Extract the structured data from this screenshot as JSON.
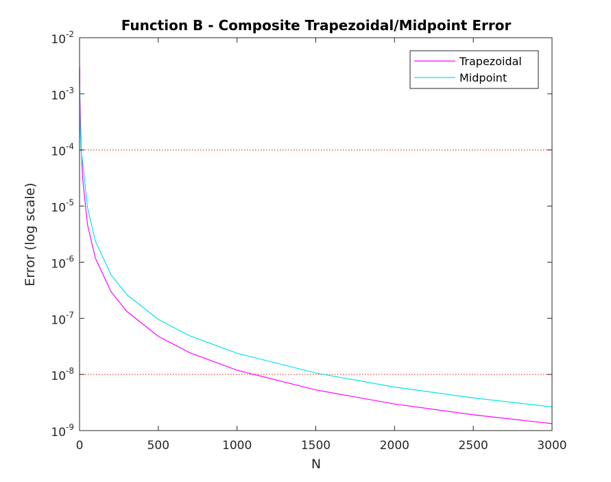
{
  "chart_data": {
    "type": "line",
    "title": "Function B - Composite Trapezoidal/Midpoint Error",
    "xlabel": "N",
    "ylabel": "Error (log scale)",
    "xlim": [
      0,
      3000
    ],
    "ylim": [
      1e-09,
      0.01
    ],
    "yscale": "log",
    "xticks": [
      0,
      500,
      1000,
      1500,
      2000,
      2500,
      3000
    ],
    "xtick_labels": [
      "0",
      "500",
      "1000",
      "1500",
      "2000",
      "2500",
      "3000"
    ],
    "yticks": [
      {
        "value": 1e-09,
        "base": "10",
        "exp": "-9"
      },
      {
        "value": 1e-08,
        "base": "10",
        "exp": "-8"
      },
      {
        "value": 1e-07,
        "base": "10",
        "exp": "-7"
      },
      {
        "value": 1e-06,
        "base": "10",
        "exp": "-6"
      },
      {
        "value": 1e-05,
        "base": "10",
        "exp": "-5"
      },
      {
        "value": 0.0001,
        "base": "10",
        "exp": "-4"
      },
      {
        "value": 0.001,
        "base": "10",
        "exp": "-3"
      },
      {
        "value": 0.01,
        "base": "10",
        "exp": "-2"
      }
    ],
    "grid": false,
    "legend_position": "top-right",
    "reference_lines": [
      {
        "y": 0.0001,
        "color": "#e8402f",
        "style": "dotted"
      },
      {
        "y": 1e-08,
        "color": "#e8402f",
        "style": "dotted"
      }
    ],
    "series": [
      {
        "name": "Trapezoidal",
        "color": "#ff00ff",
        "x": [
          1,
          2,
          5,
          10,
          20,
          50,
          100,
          200,
          300,
          500,
          700,
          1000,
          1500,
          2000,
          2500,
          3000
        ],
        "y": [
          0.003,
          0.00098,
          0.000412,
          0.000118,
          3.02e-05,
          4.78e-06,
          1.19e-06,
          2.98e-07,
          1.33e-07,
          4.78e-08,
          2.44e-08,
          1.19e-08,
          5.3e-09,
          2.98e-09,
          1.91e-09,
          1.33e-09
        ]
      },
      {
        "name": "Midpoint",
        "color": "#00e5ee",
        "x": [
          1,
          2,
          5,
          10,
          20,
          50,
          100,
          200,
          300,
          500,
          700,
          1000,
          1500,
          2000,
          2500,
          3000
        ],
        "y": [
          0.0015,
          0.00049,
          0.000206,
          9.5e-05,
          6.04e-05,
          9.56e-06,
          2.39e-06,
          5.97e-07,
          2.65e-07,
          9.56e-08,
          4.88e-08,
          2.39e-08,
          1.06e-08,
          5.97e-09,
          3.82e-09,
          2.65e-09
        ]
      }
    ]
  }
}
